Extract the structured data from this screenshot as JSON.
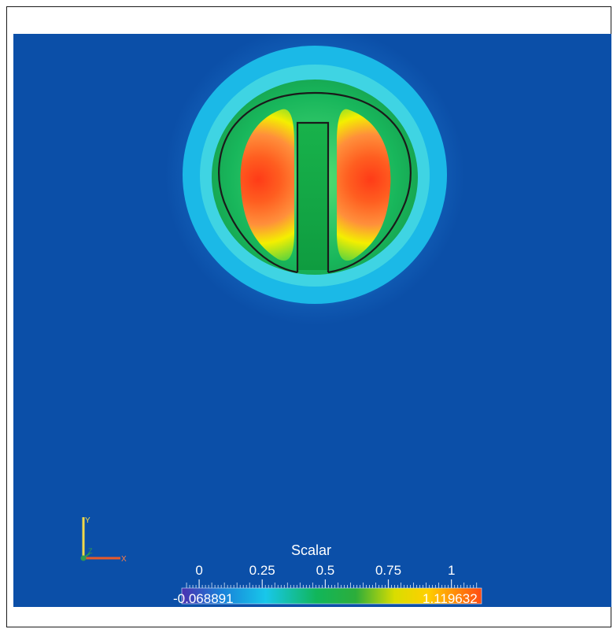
{
  "colorbar": {
    "title": "Scalar",
    "ticks": [
      {
        "label": "0",
        "value": 0
      },
      {
        "label": "0.25",
        "value": 0.25
      },
      {
        "label": "0.5",
        "value": 0.5
      },
      {
        "label": "0.75",
        "value": 0.75
      },
      {
        "label": "1",
        "value": 1
      }
    ],
    "range_min_label": "-0.068891",
    "range_max_label": "1.119632",
    "range_min": -0.068891,
    "range_max": 1.119632
  },
  "colors": {
    "background_field": "#0b4fa8",
    "frame_border": "#1a1a1a",
    "low": "#3b4cc0",
    "cyan": "#17b4e6",
    "green": "#12a844",
    "yellow": "#f3e100",
    "orange": "#ff7a24",
    "high": "#ff3f18",
    "contour": "#1a1a1a"
  },
  "axes_triad": {
    "x_axis_color": "#e85a2a",
    "y_axis_color": "#f1d84a",
    "z_axis_color": "#2f9b4f"
  }
}
